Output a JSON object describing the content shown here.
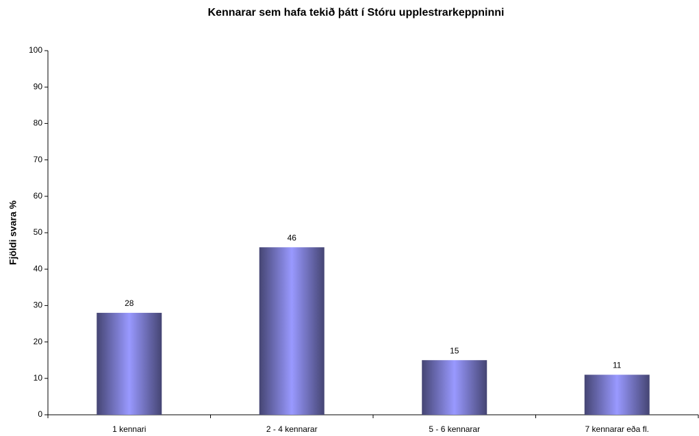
{
  "chart_data": {
    "type": "bar",
    "title": "Kennarar sem hafa tekið þátt í Stóru upplestrarkeppninni",
    "y_label": "Fjöldi svara %",
    "categories": [
      "1 kennari",
      "2 - 4 kennarar",
      "5 - 6 kennarar",
      "7 kennarar eða fl."
    ],
    "values": [
      28,
      46,
      15,
      11
    ],
    "color": "#9999ff",
    "ylim": [
      0,
      100
    ],
    "yticks": [
      0,
      10,
      20,
      30,
      40,
      50,
      60,
      70,
      80,
      90,
      100
    ],
    "grid": false
  }
}
